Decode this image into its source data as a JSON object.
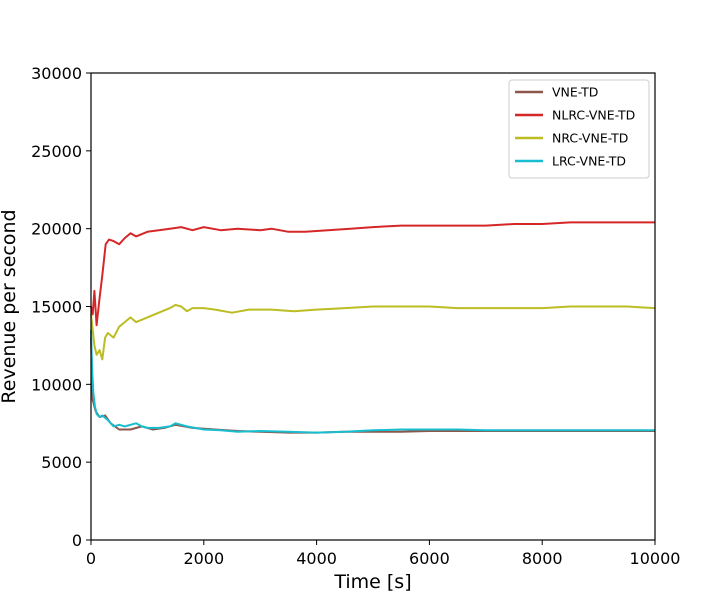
{
  "chart_data": {
    "type": "line",
    "title": "",
    "xlabel": "Time [s]",
    "ylabel": "Revenue per second",
    "xlim": [
      0,
      10000
    ],
    "ylim": [
      0,
      30000
    ],
    "xticks": [
      0,
      2000,
      4000,
      6000,
      8000,
      10000
    ],
    "yticks": [
      0,
      5000,
      10000,
      15000,
      20000,
      25000,
      30000
    ],
    "grid": false,
    "legend_position": "top-right",
    "series": [
      {
        "name": "VNE-TD",
        "color": "#8c564b",
        "points": [
          [
            0,
            13000
          ],
          [
            30,
            9000
          ],
          [
            80,
            8300
          ],
          [
            150,
            7900
          ],
          [
            250,
            8000
          ],
          [
            350,
            7500
          ],
          [
            500,
            7100
          ],
          [
            700,
            7100
          ],
          [
            900,
            7300
          ],
          [
            1100,
            7100
          ],
          [
            1300,
            7200
          ],
          [
            1500,
            7400
          ],
          [
            1800,
            7200
          ],
          [
            2200,
            7100
          ],
          [
            2600,
            7000
          ],
          [
            3000,
            6950
          ],
          [
            3500,
            6900
          ],
          [
            4000,
            6900
          ],
          [
            4500,
            6950
          ],
          [
            5000,
            6950
          ],
          [
            5500,
            6950
          ],
          [
            6000,
            7000
          ],
          [
            7000,
            7000
          ],
          [
            8000,
            7000
          ],
          [
            9000,
            7000
          ],
          [
            10000,
            7000
          ]
        ]
      },
      {
        "name": "NLRC-VNE-TD",
        "color": "#d62728",
        "points": [
          [
            0,
            15000
          ],
          [
            30,
            14500
          ],
          [
            60,
            16000
          ],
          [
            100,
            13800
          ],
          [
            150,
            15500
          ],
          [
            200,
            17000
          ],
          [
            260,
            19000
          ],
          [
            320,
            19300
          ],
          [
            400,
            19200
          ],
          [
            500,
            19000
          ],
          [
            600,
            19400
          ],
          [
            700,
            19700
          ],
          [
            800,
            19500
          ],
          [
            1000,
            19800
          ],
          [
            1200,
            19900
          ],
          [
            1400,
            20000
          ],
          [
            1600,
            20100
          ],
          [
            1800,
            19900
          ],
          [
            2000,
            20100
          ],
          [
            2300,
            19900
          ],
          [
            2600,
            20000
          ],
          [
            3000,
            19900
          ],
          [
            3200,
            20000
          ],
          [
            3500,
            19800
          ],
          [
            3800,
            19800
          ],
          [
            4200,
            19900
          ],
          [
            4600,
            20000
          ],
          [
            5000,
            20100
          ],
          [
            5500,
            20200
          ],
          [
            6000,
            20200
          ],
          [
            6500,
            20200
          ],
          [
            7000,
            20200
          ],
          [
            7500,
            20300
          ],
          [
            8000,
            20300
          ],
          [
            8500,
            20400
          ],
          [
            9000,
            20400
          ],
          [
            9500,
            20400
          ],
          [
            10000,
            20400
          ]
        ]
      },
      {
        "name": "NRC-VNE-TD",
        "color": "#bcbd22",
        "points": [
          [
            0,
            14500
          ],
          [
            30,
            13500
          ],
          [
            60,
            12500
          ],
          [
            100,
            11900
          ],
          [
            150,
            12200
          ],
          [
            200,
            11600
          ],
          [
            250,
            13000
          ],
          [
            300,
            13300
          ],
          [
            400,
            13000
          ],
          [
            500,
            13700
          ],
          [
            600,
            14000
          ],
          [
            700,
            14300
          ],
          [
            800,
            14000
          ],
          [
            1000,
            14300
          ],
          [
            1200,
            14600
          ],
          [
            1400,
            14900
          ],
          [
            1500,
            15100
          ],
          [
            1600,
            15000
          ],
          [
            1700,
            14700
          ],
          [
            1800,
            14900
          ],
          [
            2000,
            14900
          ],
          [
            2200,
            14800
          ],
          [
            2500,
            14600
          ],
          [
            2800,
            14800
          ],
          [
            3200,
            14800
          ],
          [
            3600,
            14700
          ],
          [
            4000,
            14800
          ],
          [
            4500,
            14900
          ],
          [
            5000,
            15000
          ],
          [
            5500,
            15000
          ],
          [
            6000,
            15000
          ],
          [
            6500,
            14900
          ],
          [
            7000,
            14900
          ],
          [
            7500,
            14900
          ],
          [
            8000,
            14900
          ],
          [
            8500,
            15000
          ],
          [
            9000,
            15000
          ],
          [
            9500,
            15000
          ],
          [
            10000,
            14900
          ]
        ]
      },
      {
        "name": "LRC-VNE-TD",
        "color": "#17becf",
        "points": [
          [
            0,
            13500
          ],
          [
            20,
            11000
          ],
          [
            40,
            9500
          ],
          [
            70,
            8600
          ],
          [
            100,
            8100
          ],
          [
            150,
            7900
          ],
          [
            200,
            8000
          ],
          [
            300,
            7700
          ],
          [
            400,
            7300
          ],
          [
            500,
            7400
          ],
          [
            600,
            7300
          ],
          [
            700,
            7400
          ],
          [
            800,
            7500
          ],
          [
            900,
            7300
          ],
          [
            1000,
            7200
          ],
          [
            1200,
            7200
          ],
          [
            1400,
            7300
          ],
          [
            1500,
            7500
          ],
          [
            1700,
            7300
          ],
          [
            2000,
            7100
          ],
          [
            2300,
            7050
          ],
          [
            2600,
            6950
          ],
          [
            3000,
            7000
          ],
          [
            3500,
            6950
          ],
          [
            4000,
            6900
          ],
          [
            4500,
            6950
          ],
          [
            5000,
            7050
          ],
          [
            5500,
            7100
          ],
          [
            6000,
            7100
          ],
          [
            6500,
            7100
          ],
          [
            7000,
            7050
          ],
          [
            7500,
            7050
          ],
          [
            8000,
            7050
          ],
          [
            8500,
            7050
          ],
          [
            9000,
            7050
          ],
          [
            9500,
            7050
          ],
          [
            10000,
            7050
          ]
        ]
      }
    ]
  }
}
